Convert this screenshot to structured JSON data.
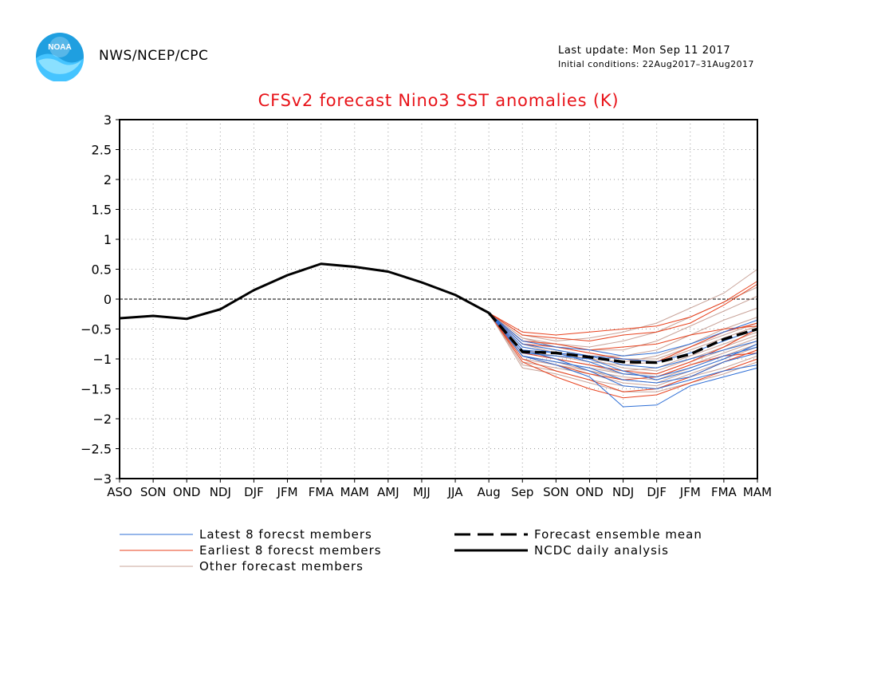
{
  "header": {
    "agency": "NWS/NCEP/CPC",
    "last_update": "Last update: Mon Sep 11 2017",
    "initial_conditions": "Initial conditions: 22Aug2017–31Aug2017",
    "logo_text": "NOAA"
  },
  "colors": {
    "title": "#e8141a",
    "latest_members": "#2f6fd6",
    "earliest_members": "#e8421e",
    "other_members": "#c9a49a",
    "analysis": "#000000"
  },
  "chart_data": {
    "type": "line",
    "title": "CFSv2 forecast Nino3 SST anomalies (K)",
    "xlabel": "",
    "ylabel": "",
    "categories": [
      "ASO",
      "SON",
      "OND",
      "NDJ",
      "DJF",
      "JFM",
      "FMA",
      "MAM",
      "AMJ",
      "MJJ",
      "JJA",
      "Aug",
      "Sep",
      "SON",
      "OND",
      "NDJ",
      "DJF",
      "JFM",
      "FMA",
      "MAM"
    ],
    "ylim": [
      -3,
      3
    ],
    "yticks": [
      -3,
      -2.5,
      -2,
      -1.5,
      -1,
      -0.5,
      0,
      0.5,
      1,
      1.5,
      2,
      2.5,
      3
    ],
    "ytick_labels": [
      "−3",
      "−2.5",
      "−2",
      "−1.5",
      "−1",
      "−0.5",
      "0",
      "0.5",
      "1",
      "1.5",
      "2",
      "2.5",
      "3"
    ],
    "grid": true,
    "zero_line": true,
    "analysis": {
      "name": "NCDC daily analysis",
      "x": [
        "ASO",
        "SON",
        "OND",
        "NDJ",
        "DJF",
        "JFM",
        "FMA",
        "MAM",
        "AMJ",
        "MJJ",
        "JJA",
        "Aug"
      ],
      "values": [
        -0.32,
        -0.28,
        -0.33,
        -0.17,
        0.15,
        0.4,
        0.59,
        0.54,
        0.46,
        0.28,
        0.07,
        -0.23
      ]
    },
    "ensemble_mean": {
      "name": "Forecast ensemble mean",
      "x": [
        "Aug",
        "Sep",
        "SON",
        "OND",
        "NDJ",
        "DJF",
        "JFM",
        "FMA",
        "MAM"
      ],
      "values": [
        -0.23,
        -0.88,
        -0.9,
        -0.97,
        -1.05,
        -1.06,
        -0.92,
        -0.67,
        -0.5
      ]
    },
    "members_x": [
      "Aug",
      "Sep",
      "SON",
      "OND",
      "NDJ",
      "DJF",
      "JFM",
      "FMA",
      "MAM"
    ],
    "latest_members": [
      [
        -0.23,
        -0.95,
        -1.1,
        -1.3,
        -1.8,
        -1.77,
        -1.45,
        -1.3,
        -1.15
      ],
      [
        -0.23,
        -0.85,
        -1.0,
        -1.2,
        -1.45,
        -1.5,
        -1.35,
        -1.2,
        -1.1
      ],
      [
        -0.23,
        -0.8,
        -0.9,
        -1.05,
        -1.25,
        -1.3,
        -1.15,
        -0.95,
        -0.8
      ],
      [
        -0.23,
        -0.75,
        -0.85,
        -0.95,
        -1.1,
        -1.15,
        -1.0,
        -0.85,
        -0.7
      ],
      [
        -0.23,
        -0.9,
        -0.95,
        -1.0,
        -1.2,
        -1.35,
        -1.2,
        -1.0,
        -0.75
      ],
      [
        -0.23,
        -0.95,
        -1.05,
        -1.15,
        -1.35,
        -1.4,
        -1.3,
        -1.05,
        -0.9
      ],
      [
        -0.23,
        -0.85,
        -0.9,
        -0.95,
        -1.0,
        -1.05,
        -0.9,
        -0.7,
        -0.5
      ],
      [
        -0.23,
        -0.7,
        -0.8,
        -0.85,
        -0.95,
        -0.9,
        -0.75,
        -0.55,
        -0.35
      ]
    ],
    "earliest_members": [
      [
        -0.23,
        -0.55,
        -0.6,
        -0.55,
        -0.5,
        -0.45,
        -0.3,
        -0.05,
        0.3
      ],
      [
        -0.23,
        -0.6,
        -0.65,
        -0.7,
        -0.6,
        -0.55,
        -0.4,
        -0.1,
        0.25
      ],
      [
        -0.23,
        -0.75,
        -0.8,
        -0.9,
        -1.0,
        -1.05,
        -0.8,
        -0.55,
        -0.4
      ],
      [
        -0.23,
        -0.9,
        -1.0,
        -1.1,
        -1.2,
        -1.25,
        -1.05,
        -0.8,
        -0.5
      ],
      [
        -0.23,
        -1.0,
        -1.2,
        -1.35,
        -1.55,
        -1.5,
        -1.3,
        -1.05,
        -0.85
      ],
      [
        -0.23,
        -1.05,
        -1.3,
        -1.5,
        -1.65,
        -1.6,
        -1.4,
        -1.2,
        -1.0
      ],
      [
        -0.23,
        -0.95,
        -1.1,
        -1.25,
        -1.35,
        -1.3,
        -1.1,
        -0.95,
        -0.9
      ],
      [
        -0.23,
        -0.7,
        -0.75,
        -0.85,
        -0.8,
        -0.75,
        -0.6,
        -0.5,
        -0.45
      ]
    ],
    "other_members": [
      [
        -0.23,
        -0.6,
        -0.7,
        -0.65,
        -0.55,
        -0.4,
        -0.15,
        0.1,
        0.5
      ],
      [
        -0.23,
        -0.65,
        -0.75,
        -0.8,
        -0.7,
        -0.55,
        -0.3,
        -0.05,
        0.2
      ],
      [
        -0.23,
        -0.7,
        -0.8,
        -0.85,
        -0.85,
        -0.7,
        -0.45,
        -0.2,
        0.05
      ],
      [
        -0.23,
        -0.75,
        -0.85,
        -0.95,
        -0.95,
        -0.85,
        -0.6,
        -0.35,
        -0.15
      ],
      [
        -0.23,
        -0.8,
        -0.9,
        -1.0,
        -1.05,
        -0.95,
        -0.75,
        -0.5,
        -0.3
      ],
      [
        -0.23,
        -0.85,
        -0.95,
        -1.05,
        -1.1,
        -1.05,
        -0.85,
        -0.65,
        -0.45
      ],
      [
        -0.23,
        -0.9,
        -1.0,
        -1.1,
        -1.2,
        -1.15,
        -0.95,
        -0.75,
        -0.55
      ],
      [
        -0.23,
        -0.95,
        -1.05,
        -1.15,
        -1.25,
        -1.25,
        -1.05,
        -0.85,
        -0.65
      ],
      [
        -0.23,
        -1.0,
        -1.1,
        -1.2,
        -1.3,
        -1.35,
        -1.15,
        -0.95,
        -0.75
      ],
      [
        -0.23,
        -1.05,
        -1.15,
        -1.25,
        -1.4,
        -1.45,
        -1.25,
        -1.05,
        -0.85
      ],
      [
        -0.23,
        -1.1,
        -1.2,
        -1.35,
        -1.45,
        -1.5,
        -1.3,
        -1.15,
        -0.95
      ],
      [
        -0.23,
        -1.15,
        -1.25,
        -1.4,
        -1.55,
        -1.55,
        -1.4,
        -1.25,
        -1.05
      ],
      [
        -0.23,
        -0.65,
        -0.8,
        -0.9,
        -1.0,
        -1.0,
        -0.8,
        -0.6,
        -0.4
      ],
      [
        -0.23,
        -0.75,
        -0.9,
        -1.0,
        -1.15,
        -1.2,
        -1.0,
        -0.8,
        -0.6
      ],
      [
        -0.23,
        -0.85,
        -1.0,
        -1.1,
        -1.25,
        -1.3,
        -1.1,
        -0.9,
        -0.7
      ],
      [
        -0.23,
        -0.95,
        -1.05,
        -1.2,
        -1.35,
        -1.4,
        -1.2,
        -1.0,
        -0.8
      ]
    ],
    "legend": {
      "latest": "Latest 8 forecst members",
      "earliest": "Earliest 8 forecst members",
      "other": "Other forecast members",
      "mean": "Forecast ensemble mean",
      "analysis": "NCDC daily analysis"
    }
  }
}
